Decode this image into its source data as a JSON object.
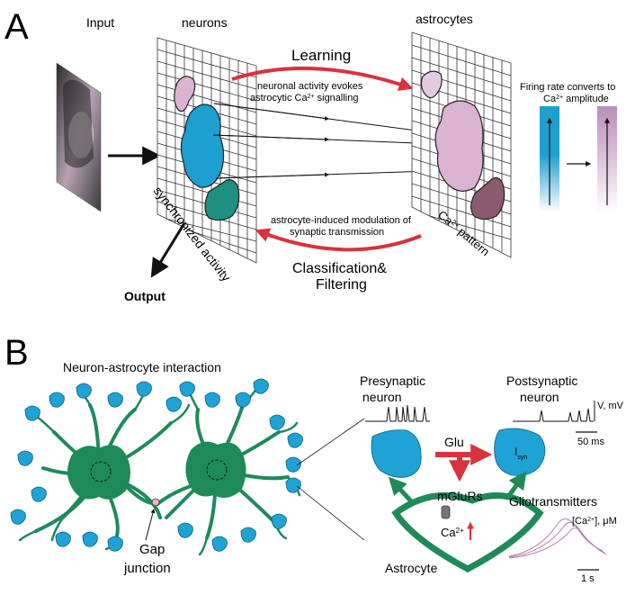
{
  "panel_a": {
    "letter": "A",
    "input_label": "Input",
    "neurons_label": "neurons",
    "astrocytes_label": "astrocytes",
    "learning_label": "Learning",
    "learning_note_line1": "neuronal activity evokes",
    "learning_note_line2": "astrocytic Ca",
    "learning_note_sup": "2+",
    "learning_note_tail": " signalling",
    "firing_note_line1": "Firing rate converts to",
    "firing_note_line2_base": "Ca",
    "firing_note_line2_sup": "2+",
    "firing_note_line2_tail": " amplitude",
    "sync_label": "synchronized activity",
    "ca_pattern_base": "Ca",
    "ca_pattern_sup": "2+",
    "ca_pattern_tail": " pattern",
    "modulation_line1": "astrocyte-induced modulation of",
    "modulation_line2": "synaptic transmission",
    "classification_line1": "Classification&",
    "classification_line2": "Filtering",
    "output_label": "Output",
    "colors": {
      "neuron_blue": "#1d9fcf",
      "neuron_teal": "#1f8f80",
      "astro_pink": "#d9b3d0",
      "astro_mauve": "#8a5a6f",
      "arrow_red": "#d8323f",
      "grid": "#333333"
    }
  },
  "panel_b": {
    "letter": "B",
    "title": "Neuron-astrocyte interaction",
    "gap_line1": "Gap",
    "gap_line2": "junction",
    "presynaptic_line1": "Presynaptic",
    "presynaptic_line2": "neuron",
    "postsynaptic_line1": "Postsynaptic",
    "postsynaptic_line2": "neuron",
    "v_unit": "V, mV",
    "time_scale_ms": "50 ms",
    "glu_label": "Glu",
    "isyn_base": "I",
    "isyn_sub": "syn",
    "mglurs_label": "mGluRs",
    "ca_base": "Ca",
    "ca_sup": "2+",
    "gliotransmitters_label": "Gliotransmitters",
    "ca_conc_base": "[Ca",
    "ca_conc_sup": "2+",
    "ca_conc_tail": "], μM",
    "astrocyte_label": "Astrocyte",
    "time_scale_s": "1 s",
    "colors": {
      "cell_green": "#1e8a5a",
      "bouton_blue": "#1fa3d4",
      "arrow_red": "#d8323f",
      "arrow_green": "#1e8a5a",
      "trace_pink": "#b57ab0"
    }
  }
}
